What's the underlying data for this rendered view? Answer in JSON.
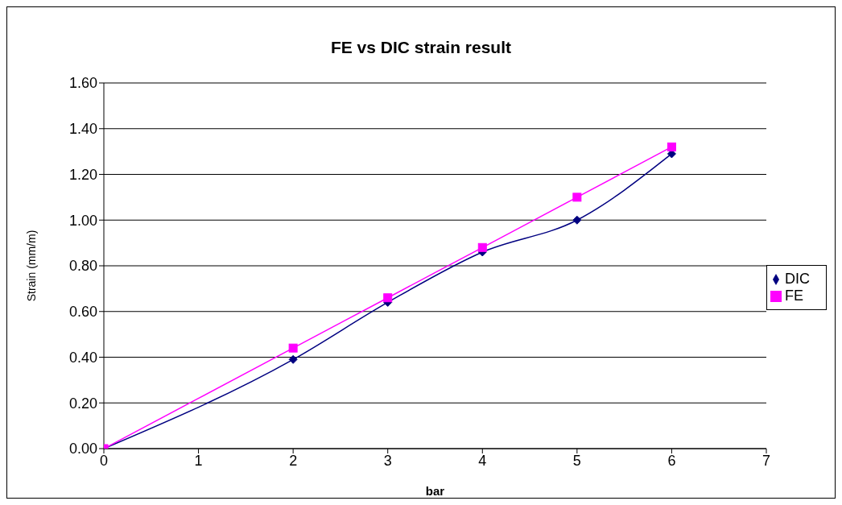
{
  "chart_data": {
    "type": "line",
    "title": "FE vs DIC strain result",
    "xlabel": "bar",
    "ylabel": "Strain (mm/m)",
    "series": [
      {
        "name": "DIC",
        "color": "#000080",
        "marker": "diamond",
        "x": [
          0,
          2,
          3,
          4,
          5,
          6
        ],
        "values": [
          0,
          0.39,
          0.64,
          0.86,
          1.0,
          1.29
        ]
      },
      {
        "name": "FE",
        "color": "#ff00ff",
        "marker": "square",
        "x": [
          0,
          2,
          3,
          4,
          5,
          6
        ],
        "values": [
          0,
          0.44,
          0.66,
          0.88,
          1.1,
          1.32
        ]
      }
    ],
    "xlim": [
      0,
      7
    ],
    "xticks": [
      0,
      1,
      2,
      3,
      4,
      5,
      6,
      7
    ],
    "ylim": [
      0,
      1.6
    ],
    "yticks": [
      {
        "value": 0,
        "label": "0.00"
      },
      {
        "value": 0.2,
        "label": "0.20"
      },
      {
        "value": 0.4,
        "label": "0.40"
      },
      {
        "value": 0.6,
        "label": "0.60"
      },
      {
        "value": 0.8,
        "label": "0.80"
      },
      {
        "value": 1.0,
        "label": "1.00"
      },
      {
        "value": 1.2,
        "label": "1.20"
      },
      {
        "value": 1.4,
        "label": "1.40"
      },
      {
        "value": 1.6,
        "label": "1.60"
      }
    ],
    "grid": "y",
    "legend": "right",
    "line_style": "solid"
  }
}
